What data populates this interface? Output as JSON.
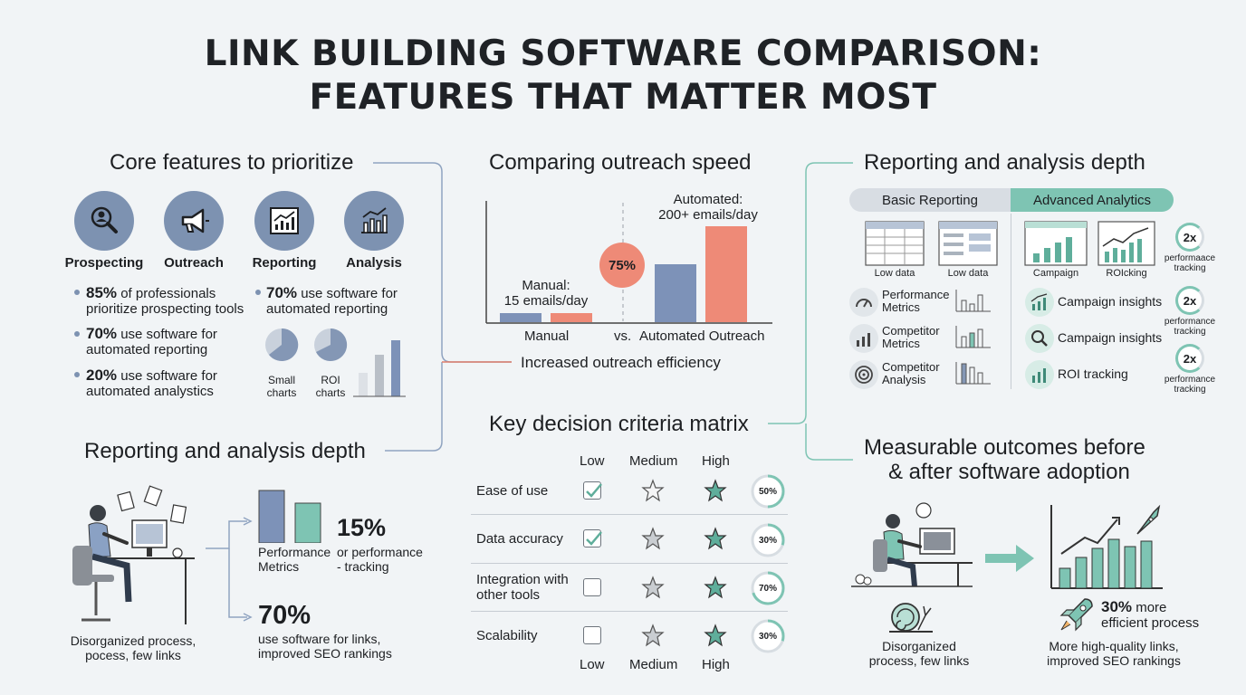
{
  "title": {
    "line1": "LINK BUILDING SOFTWARE COMPARISON:",
    "line2": "FEATURES THAT MATTER MOST"
  },
  "core": {
    "heading": "Core features to prioritize",
    "icons": [
      {
        "label": "Prospecting",
        "icon": "magnifier-person-icon"
      },
      {
        "label": "Outreach",
        "icon": "megaphone-icon"
      },
      {
        "label": "Reporting",
        "icon": "line-chart-icon"
      },
      {
        "label": "Analysis",
        "icon": "bar-chart-icon"
      }
    ],
    "bullets_left": [
      {
        "pct": "85%",
        "text1": " of professionals",
        "text2": "prioritize prospecting tools"
      },
      {
        "pct": "70%",
        "text1": " use software for",
        "text2": "automated reporting"
      },
      {
        "pct": "20%",
        "text1": " use software for",
        "text2": "automated analystics"
      }
    ],
    "bullet_right": {
      "pct": "70%",
      "text1": " use software for",
      "text2": "automated reporting"
    },
    "pie_labels": [
      {
        "line1": "Small",
        "line2": "charts"
      },
      {
        "line1": "ROI",
        "line2": "charts"
      }
    ]
  },
  "reporting_left": {
    "heading": "Reporting and analysis depth",
    "caption1": "Disorganized process,",
    "caption2": "pocess, few links",
    "stat1": {
      "pct": "15%",
      "label1": "Performance",
      "label2": "Metrics",
      "note1": "or performance",
      "note2": "- tracking"
    },
    "stat2": {
      "pct": "70%",
      "line1": "use software for links,",
      "line2": "improved SEO rankings"
    }
  },
  "speed": {
    "heading": "Comparing outreach speed",
    "manual_label1": "Manual:",
    "manual_label2": "15 emails/day",
    "auto_label1": "Automated:",
    "auto_label2": "200+ emails/day",
    "badge": "75%",
    "x_manual": "Manual",
    "x_vs": "vs.",
    "x_auto": "Automated Outreach",
    "caption": "Increased outreach efficiency",
    "colors": {
      "manual": "#7d92b8",
      "auto": "#ee8a77"
    }
  },
  "matrix": {
    "heading": "Key decision criteria matrix",
    "cols": [
      "Low",
      "Medium",
      "High"
    ],
    "rows": [
      {
        "line1": "Ease of use",
        "line2": "",
        "checked": true,
        "pct": "50%",
        "fraction": 0.5
      },
      {
        "line1": "Data accuracy",
        "line2": "",
        "checked": true,
        "pct": "30%",
        "fraction": 0.3
      },
      {
        "line1": "Integration with",
        "line2": "other tools",
        "checked": false,
        "pct": "70%",
        "fraction": 0.7
      },
      {
        "line1": "Scalability",
        "line2": "",
        "checked": false,
        "pct": "30%",
        "fraction": 0.3
      }
    ]
  },
  "reporting_right": {
    "heading": "Reporting and analysis depth",
    "tab_basic": "Basic Reporting",
    "tab_advanced": "Advanced Analytics",
    "basic_thumbs": [
      "Low data",
      "Low data"
    ],
    "basic_items": [
      {
        "line1": "Performance",
        "line2": "Metrics",
        "icon": "gauge-icon"
      },
      {
        "line1": "Competitor",
        "line2": "Metrics",
        "icon": "bar-chart-icon"
      },
      {
        "line1": "Competitor",
        "line2": "Analysis",
        "icon": "target-icon"
      }
    ],
    "adv_thumbs": [
      "Campaign",
      "ROIcking"
    ],
    "adv_items": [
      {
        "label": "Campaign insights",
        "icon": "chart-icon"
      },
      {
        "label": "Campaign insights",
        "icon": "search-icon"
      },
      {
        "label": "ROI tracking",
        "icon": "bar-chart-icon"
      }
    ],
    "badges": [
      {
        "value": "2x",
        "line1": "performaace",
        "line2": "tracking"
      },
      {
        "value": "2x",
        "line1": "performance",
        "line2": "tracking"
      },
      {
        "value": "2x",
        "line1": "performance",
        "line2": "tracking"
      }
    ]
  },
  "outcomes": {
    "heading1": "Measurable outcomes before",
    "heading2": "& after software adoption",
    "before1": "Disorganized",
    "before2": "process, few links",
    "pct": "30%",
    "pct_text": " more",
    "pct_line2": "efficient process",
    "after1": "More high-quality links,",
    "after2": "improved SEO rankings"
  }
}
